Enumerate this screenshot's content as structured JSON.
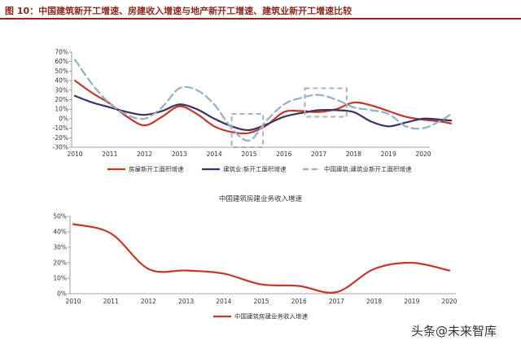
{
  "figure_title": "图 10：中国建筑新开工增速、房建收入增速与地产新开工增速、建筑业新开工增速比较",
  "colors": {
    "red": "#c0392b",
    "navy": "#3b3263",
    "lightblue": "#8fb0c8",
    "dashbox": "#b0b0b0",
    "title": "#8a2b1e"
  },
  "watermark": "头条@未来智库",
  "chart_data": [
    {
      "type": "line",
      "title": "",
      "xlabel": "",
      "ylabel": "",
      "x_ticks": [
        "2010",
        "2011",
        "2012",
        "2013",
        "2014",
        "2015",
        "2016",
        "2017",
        "2018",
        "2019",
        "2020"
      ],
      "y_ticks": [
        "70%",
        "60%",
        "50%",
        "40%",
        "30%",
        "20%",
        "10%",
        "0%",
        "-10%",
        "-20%",
        "-30%"
      ],
      "ylim": [
        -30,
        70
      ],
      "grid": false,
      "legend_position": "bottom",
      "series": [
        {
          "name": "房屋新开工面积增速",
          "color": "#c0392b",
          "dash": "solid",
          "x": [
            2010,
            2010.5,
            2011,
            2011.5,
            2012,
            2012.5,
            2013,
            2013.5,
            2014,
            2014.5,
            2015,
            2015.5,
            2016,
            2016.5,
            2017,
            2017.5,
            2018,
            2018.5,
            2019,
            2019.5,
            2020,
            2020.5,
            2020.8
          ],
          "y": [
            40,
            27,
            16,
            2,
            -7,
            2,
            13,
            5,
            -8,
            -14,
            -15,
            -7,
            7,
            8,
            7,
            10,
            17,
            14,
            8,
            2,
            -1,
            -3,
            -5
          ]
        },
        {
          "name": "建筑业:新开工面积增速",
          "color": "#3b3263",
          "dash": "solid",
          "x": [
            2010,
            2010.5,
            2011,
            2011.5,
            2012,
            2012.5,
            2013,
            2013.5,
            2014,
            2014.5,
            2015,
            2015.5,
            2016,
            2016.5,
            2017,
            2017.5,
            2018,
            2018.5,
            2019,
            2019.5,
            2020,
            2020.5,
            2020.8
          ],
          "y": [
            24,
            17,
            12,
            7,
            4,
            8,
            15,
            10,
            0,
            -8,
            -12,
            -6,
            2,
            6,
            9,
            9,
            7,
            -3,
            -8,
            -4,
            0,
            -1,
            -2
          ]
        },
        {
          "name": "中国建筑:建筑业新开工面积增速",
          "color": "#8fb0c8",
          "dash": "dashed",
          "x": [
            2010,
            2010.5,
            2011,
            2011.5,
            2012,
            2012.5,
            2013,
            2013.5,
            2014,
            2014.5,
            2015,
            2015.5,
            2016,
            2016.5,
            2017,
            2017.5,
            2018,
            2018.5,
            2019,
            2019.5,
            2020,
            2020.5,
            2020.8
          ],
          "y": [
            62,
            36,
            16,
            4,
            0,
            12,
            32,
            30,
            15,
            -10,
            -23,
            -2,
            15,
            22,
            25,
            20,
            12,
            9,
            5,
            -8,
            -10,
            -2,
            5
          ]
        }
      ]
    },
    {
      "type": "line",
      "title": "中国建筑房建业务收入增速",
      "xlabel": "",
      "ylabel": "",
      "x_ticks": [
        "2010",
        "2011",
        "2012",
        "2013",
        "2014",
        "2015",
        "2016",
        "2017",
        "2018",
        "2019",
        "2020"
      ],
      "y_ticks": [
        "50%",
        "40%",
        "30%",
        "20%",
        "10%",
        "0%"
      ],
      "ylim": [
        0,
        50
      ],
      "grid": false,
      "legend_position": "bottom",
      "series": [
        {
          "name": "中国建筑房建业务收入增速",
          "color": "#c0392b",
          "dash": "solid",
          "x": [
            2010,
            2011,
            2012,
            2013,
            2014,
            2015,
            2016,
            2017,
            2018,
            2019,
            2020
          ],
          "y": [
            45,
            39,
            16,
            15,
            13,
            6,
            5,
            1,
            16,
            20,
            15
          ]
        }
      ]
    }
  ]
}
